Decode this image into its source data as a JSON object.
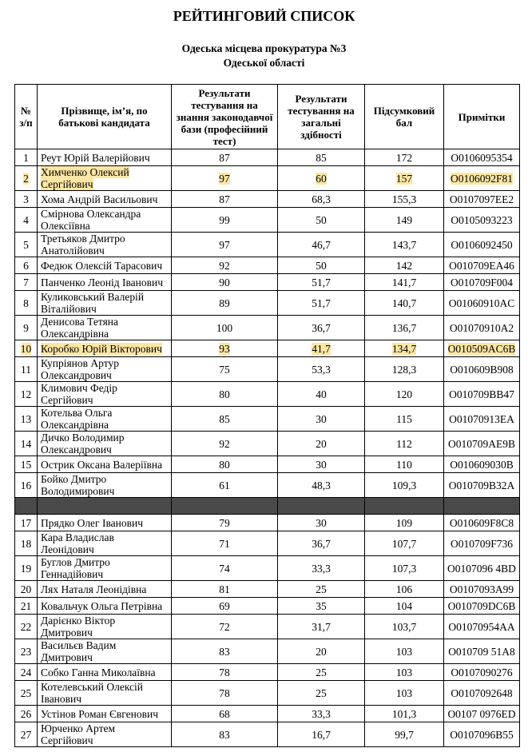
{
  "header": {
    "title": "РЕЙТИНГОВИЙ СПИСОК",
    "subtitle_lines": [
      "Одеська місцева прокуратура №3",
      "Одеської області"
    ]
  },
  "table": {
    "columns": [
      "№ з/п",
      "Прізвище, ім’я, по батькові кандидата",
      "Результати тестування на знання законодавчої бази (професійний тест)",
      "Результати тестування на загальні здібності",
      "Підсумковий бал",
      "Примітки"
    ],
    "highlighted_rows": [
      1,
      9
    ],
    "groups": [
      {
        "rows": [
          [
            "1",
            "Реут Юрій Валерійович",
            "87",
            "85",
            "172",
            "О0106095354"
          ],
          [
            "2",
            "Химченко Олексий Сергійович",
            "97",
            "60",
            "157",
            "О0106092F81"
          ],
          [
            "3",
            "Хома Андрій Васильович",
            "87",
            "68,3",
            "155,3",
            "О0107097EE2"
          ],
          [
            "4",
            "Смірнова Олександра Олексіївна",
            "99",
            "50",
            "149",
            "О0105093223"
          ],
          [
            "5",
            "Третьяков Дмитро Анатолійович",
            "97",
            "46,7",
            "143,7",
            "О0106092450"
          ],
          [
            "6",
            "Федюк Олексій Тарасович",
            "92",
            "50",
            "142",
            "О010709EA46"
          ],
          [
            "7",
            "Панченко Леонід Іванович",
            "90",
            "51,7",
            "141,7",
            "О010709F004"
          ],
          [
            "8",
            "Куликовський Валерій Віталійович",
            "89",
            "51,7",
            "140,7",
            "О01060910AC"
          ],
          [
            "9",
            "Денисова Тетяна Олександрівна",
            "100",
            "36,7",
            "136,7",
            "О01070910A2"
          ],
          [
            "10",
            "Коробко Юрій Вікторович",
            "93",
            "41,7",
            "134,7",
            "О010509AC6B"
          ],
          [
            "11",
            "Купріянов Артур Олександрович",
            "75",
            "53,3",
            "128,3",
            "О010609B908"
          ],
          [
            "12",
            "Климович Федір Сергійович",
            "80",
            "40",
            "120",
            "О010709BB47"
          ],
          [
            "13",
            "Котельва Ольга Олександрівна",
            "85",
            "30",
            "115",
            "О01070913EA"
          ],
          [
            "14",
            "Дичко Володимир Олександрович",
            "92",
            "20",
            "112",
            "О010709AE9B"
          ],
          [
            "15",
            "Острик Оксана Валеріївна",
            "80",
            "30",
            "110",
            "О010609030B"
          ],
          [
            "16",
            "Бойко Дмитро Володимирович",
            "61",
            "48,3",
            "109,3",
            "О010709B32A"
          ]
        ]
      },
      {
        "rows": [
          [
            "17",
            "Прядко Олег Іванович",
            "79",
            "30",
            "109",
            "О010609F8C8"
          ],
          [
            "18",
            "Кара Владислав Леонідович",
            "71",
            "36,7",
            "107,7",
            "О010709F736"
          ],
          [
            "19",
            "Буглов Дмитро Геннадійович",
            "74",
            "33,3",
            "107,3",
            "О0107096 4BD"
          ],
          [
            "20",
            "Лях Наталя Леонідівна",
            "81",
            "25",
            "106",
            "О0107093A99"
          ],
          [
            "21",
            "Ковальчук Ольга Петрівна",
            "69",
            "35",
            "104",
            "О010709DC6B"
          ],
          [
            "22",
            "Дарієнко Віктор Дмитрович",
            "72",
            "31,7",
            "103,7",
            "О01070954AA"
          ],
          [
            "23",
            "Васильєв Вадим Дмитрович",
            "83",
            "20",
            "103",
            "О010709 51A8"
          ],
          [
            "24",
            "Собко Ганна Миколаївна",
            "78",
            "25",
            "103",
            "О0107090276"
          ],
          [
            "25",
            "Котелевський Олексій Іванович",
            "78",
            "25",
            "103",
            "О0107092648"
          ],
          [
            "26",
            "Устінов Роман Євгенович",
            "68",
            "33,3",
            "101,3",
            "О0107 0976ED"
          ],
          [
            "27",
            "Юрченко Артем Сергійович",
            "83",
            "16,7",
            "99,7",
            "О0107096B55"
          ]
        ]
      }
    ]
  }
}
